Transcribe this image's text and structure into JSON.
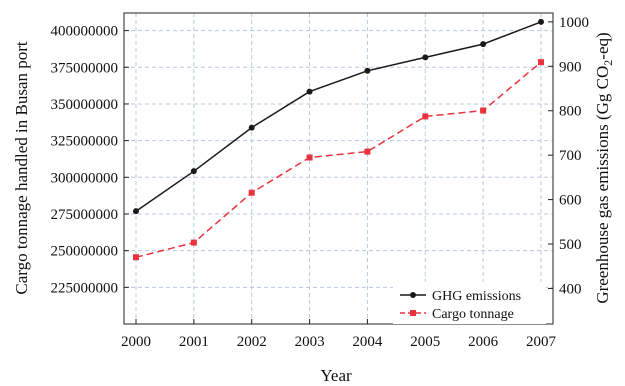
{
  "chart_data": {
    "type": "line",
    "title": "",
    "xlabel": "Year",
    "ylabel_left": "Cargo tonnage handled in Busan port",
    "ylabel_right_parts": [
      "Greenhouse gas emissions (Gg CO",
      "2",
      "-eq)"
    ],
    "x": [
      "2000",
      "2001",
      "2002",
      "2003",
      "2004",
      "2005",
      "2006",
      "2007"
    ],
    "ylim_left": [
      200000000,
      412000000
    ],
    "yticks_left": [
      "225000000",
      "250000000",
      "275000000",
      "300000000",
      "325000000",
      "350000000",
      "375000000",
      "400000000"
    ],
    "ylim_right": [
      320,
      1020
    ],
    "yticks_right": [
      "400",
      "500",
      "600",
      "700",
      "800",
      "900",
      "1000"
    ],
    "grid": true,
    "legend_position": "bottom-right",
    "series": [
      {
        "name": "GHG emissions",
        "axis": "right",
        "color": "#1a1a1a",
        "line_style": "solid",
        "marker": "circle",
        "values": [
          574,
          664,
          762,
          843,
          890,
          920,
          950,
          1000
        ]
      },
      {
        "name": "Cargo tonnage",
        "axis": "left",
        "color": "#e8323c",
        "line_style": "dashed",
        "marker": "square",
        "values": [
          245500000,
          255500000,
          289500000,
          313500000,
          317500000,
          341500000,
          345500000,
          378500000
        ]
      }
    ]
  }
}
